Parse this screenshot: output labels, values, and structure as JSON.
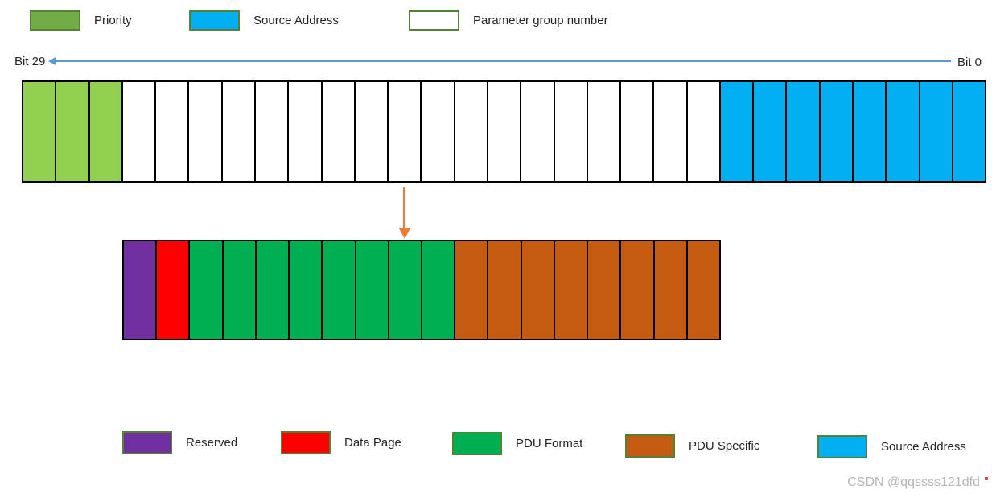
{
  "legend_top": {
    "items": [
      {
        "label": "Priority",
        "fill": "#70AD47"
      },
      {
        "label": "Source Address",
        "fill": "#00B0F0"
      },
      {
        "label": "Parameter group number",
        "fill": "#FFFFFF"
      }
    ],
    "swatch_border": "#548235"
  },
  "bit_ruler": {
    "left_label": "Bit 29",
    "right_label": "Bit 0",
    "line_color": "#5B9BD5"
  },
  "rows": [
    {
      "name": "can-id-29bit-row",
      "total_cells": 29,
      "segments": [
        {
          "name": "priority",
          "color": "#92D050",
          "count": 3
        },
        {
          "name": "parameter-group-number",
          "color": "#FFFFFF",
          "count": 18
        },
        {
          "name": "source-address",
          "color": "#00B0F0",
          "count": 8
        }
      ]
    },
    {
      "name": "pgn-expanded-row",
      "total_cells": 18,
      "segments": [
        {
          "name": "reserved",
          "color": "#7030A0",
          "count": 1
        },
        {
          "name": "data-page",
          "color": "#FF0000",
          "count": 1
        },
        {
          "name": "pdu-format",
          "color": "#00B050",
          "count": 8
        },
        {
          "name": "pdu-specific",
          "color": "#C55A11",
          "count": 8
        }
      ]
    }
  ],
  "expansion_arrow": {
    "color": "#ED7D31"
  },
  "legend_bottom": {
    "items": [
      {
        "label": "Reserved",
        "fill": "#7030A0"
      },
      {
        "label": "Data Page",
        "fill": "#FF0000"
      },
      {
        "label": "PDU Format",
        "fill": "#00B050"
      },
      {
        "label": "PDU Specific",
        "fill": "#C55A11"
      },
      {
        "label": "Source Address",
        "fill": "#00B0F0"
      }
    ]
  },
  "watermark": {
    "text": "CSDN @qqssss121dfd"
  }
}
